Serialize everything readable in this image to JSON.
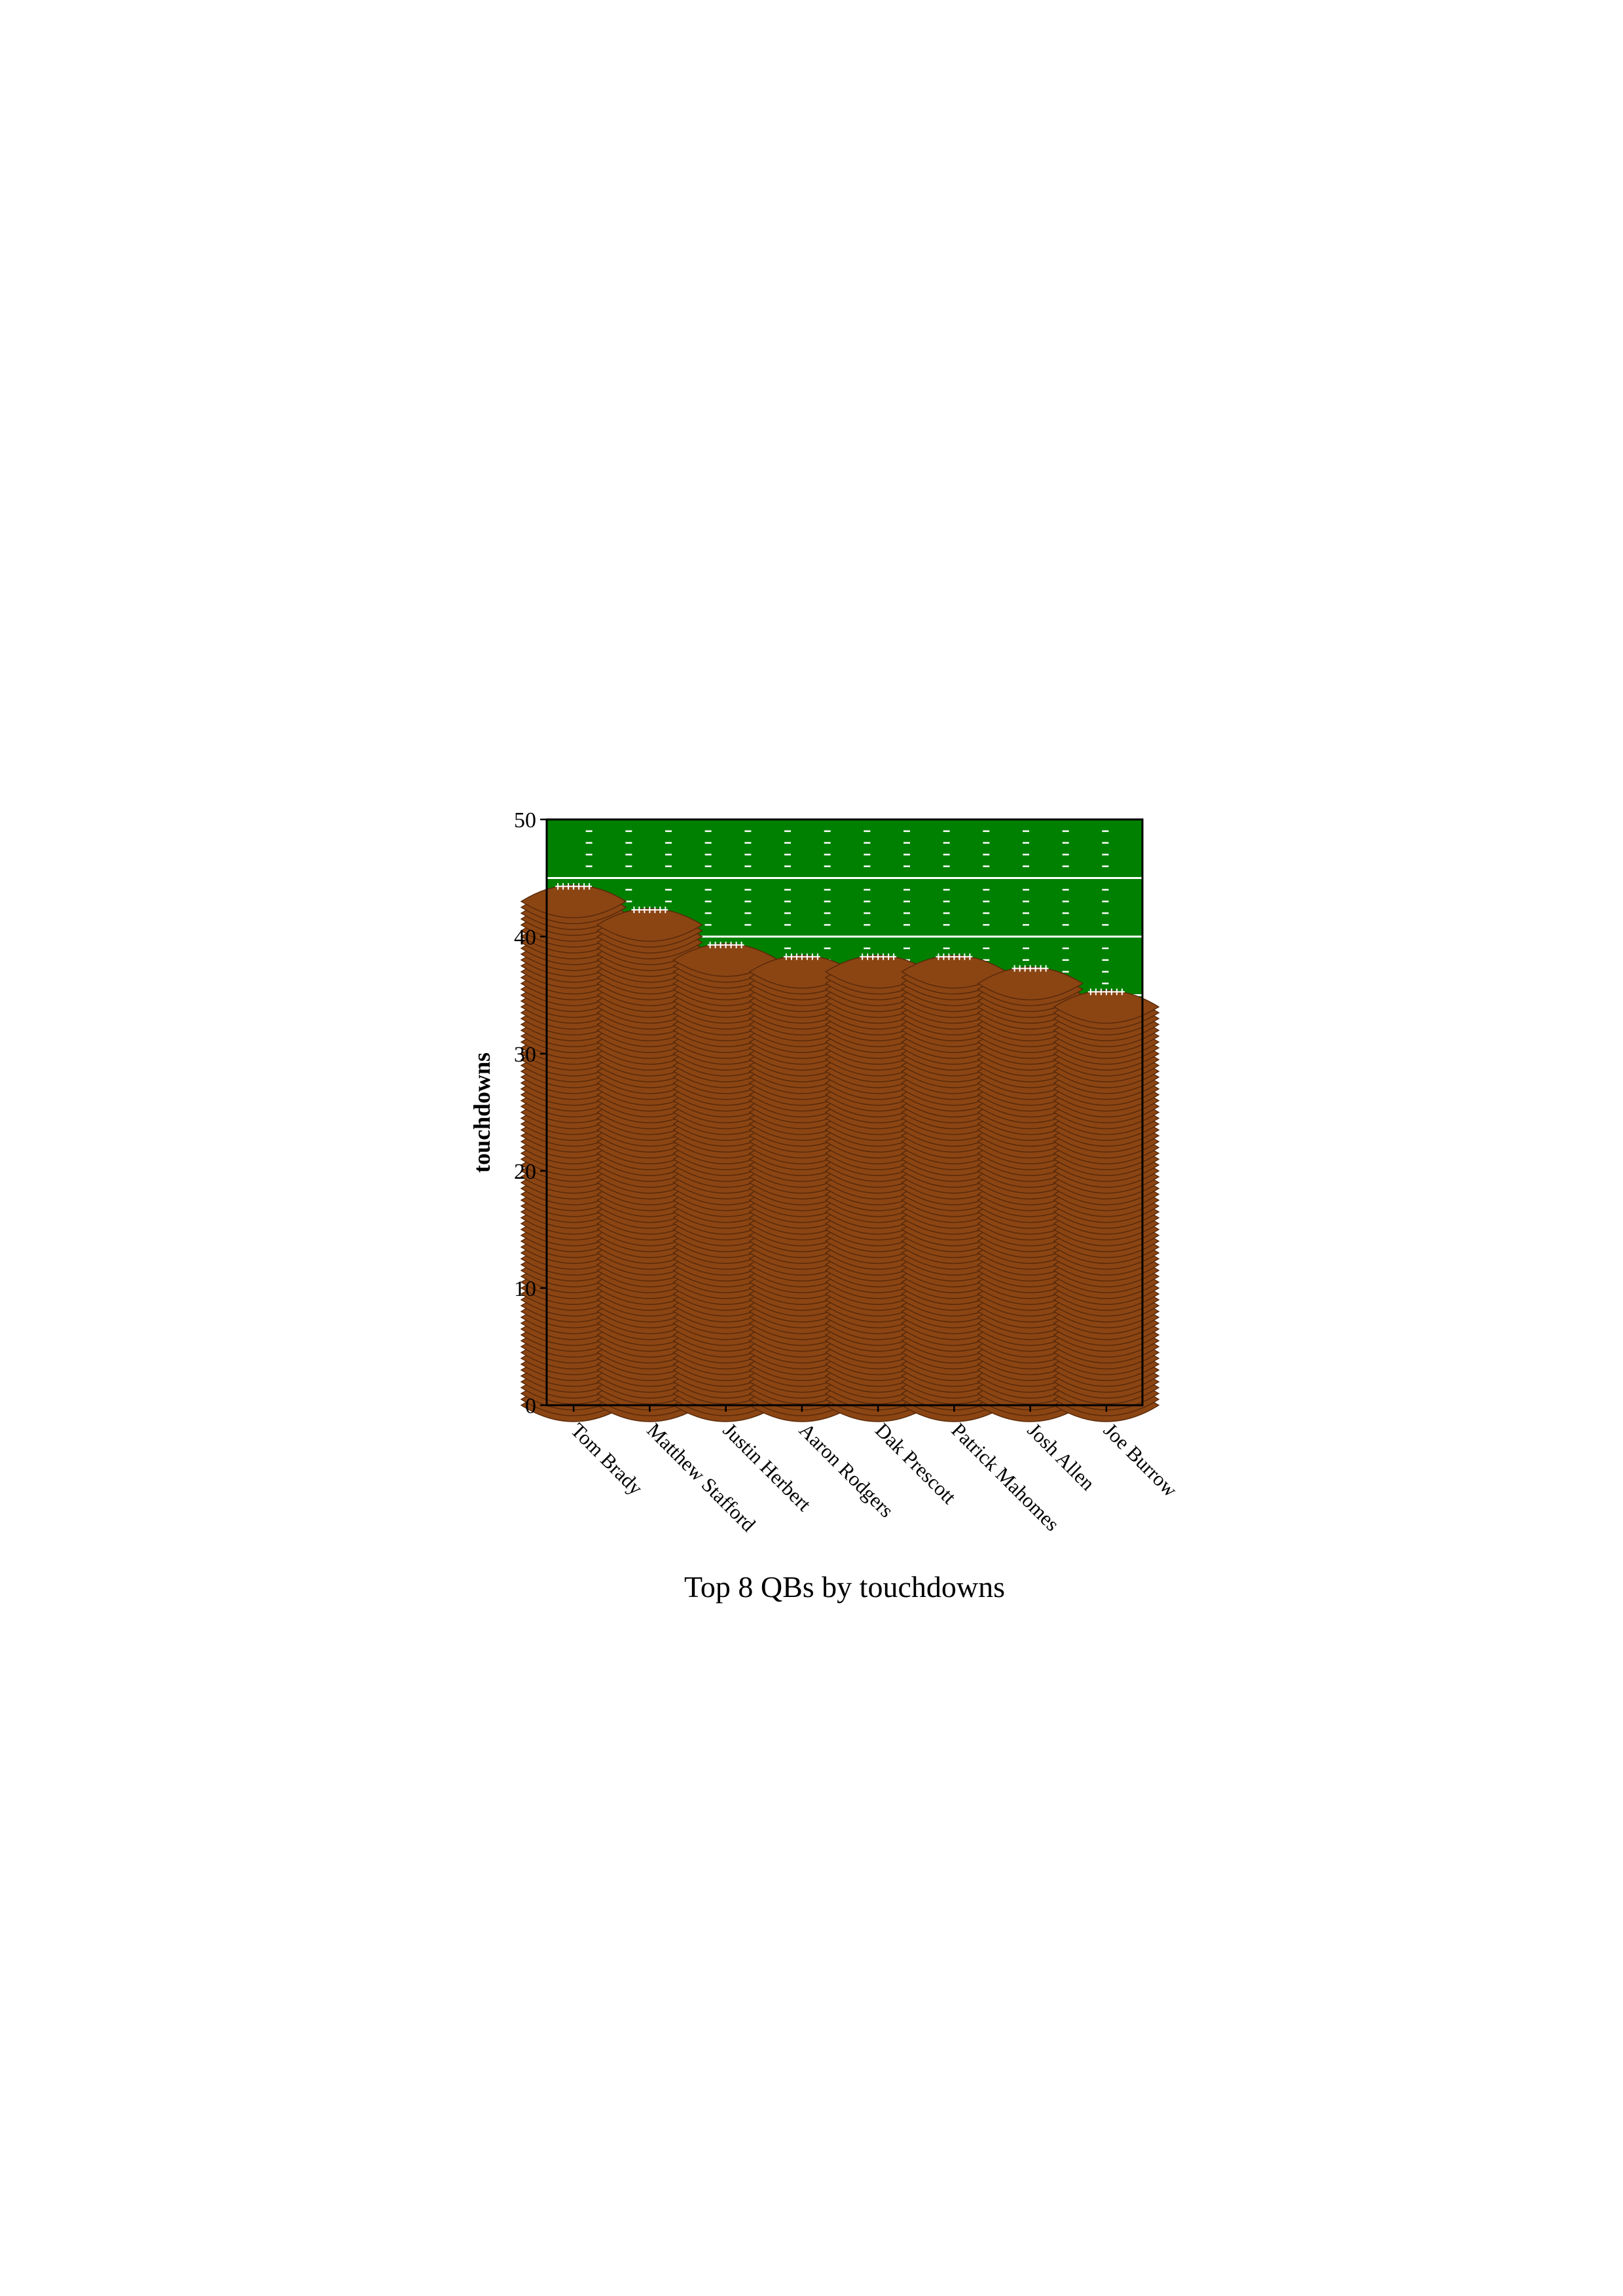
{
  "chart_data": {
    "type": "bar",
    "title": "Top 8 QBs by touchdowns",
    "xlabel": "",
    "ylabel": "touchdowns",
    "categories": [
      "Tom Brady",
      "Matthew Stafford",
      "Justin Herbert",
      "Aaron Rodgers",
      "Dak Prescott",
      "Patrick Mahomes",
      "Josh Allen",
      "Joe Burrow"
    ],
    "values": [
      43,
      41,
      38,
      37,
      37,
      37,
      36,
      34
    ],
    "ylim": [
      0,
      50
    ],
    "yticks": [
      0,
      10,
      20,
      30,
      40,
      50
    ],
    "grid": false,
    "legend": "none",
    "colors": {
      "field": "#008000",
      "yard_line": "#ffffff",
      "football": "#8b4513",
      "football_stroke": "#5a2a0a",
      "lace": "#ffffff"
    }
  }
}
